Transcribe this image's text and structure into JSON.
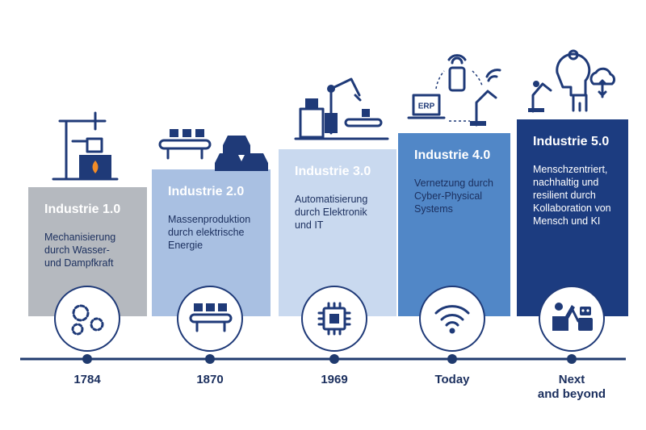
{
  "stages": [
    {
      "title": "Industrie 1.0",
      "description": [
        "Mechanisierung",
        "durch Wasser-",
        "und Dampfkraft"
      ],
      "date": [
        "1784"
      ]
    },
    {
      "title": "Industrie 2.0",
      "description": [
        "Massenproduktion",
        "durch elektrische",
        "Energie"
      ],
      "date": [
        "1870"
      ]
    },
    {
      "title": "Industrie 3.0",
      "description": [
        "Automatisierung",
        "durch Elektronik",
        "und IT"
      ],
      "date": [
        "1969"
      ]
    },
    {
      "title": "Industrie 4.0",
      "description": [
        "Vernetzung durch",
        "Cyber-Physical",
        "Systems"
      ],
      "date": [
        "Today"
      ]
    },
    {
      "title": "Industrie 5.0",
      "description": [
        "Menschzentriert,",
        "nachhaltig und",
        "resilient durch",
        "Kollaboration von",
        "Mensch und KI"
      ],
      "date": [
        "Next",
        "and beyond"
      ]
    }
  ],
  "icons": {
    "erp": "ERP"
  }
}
